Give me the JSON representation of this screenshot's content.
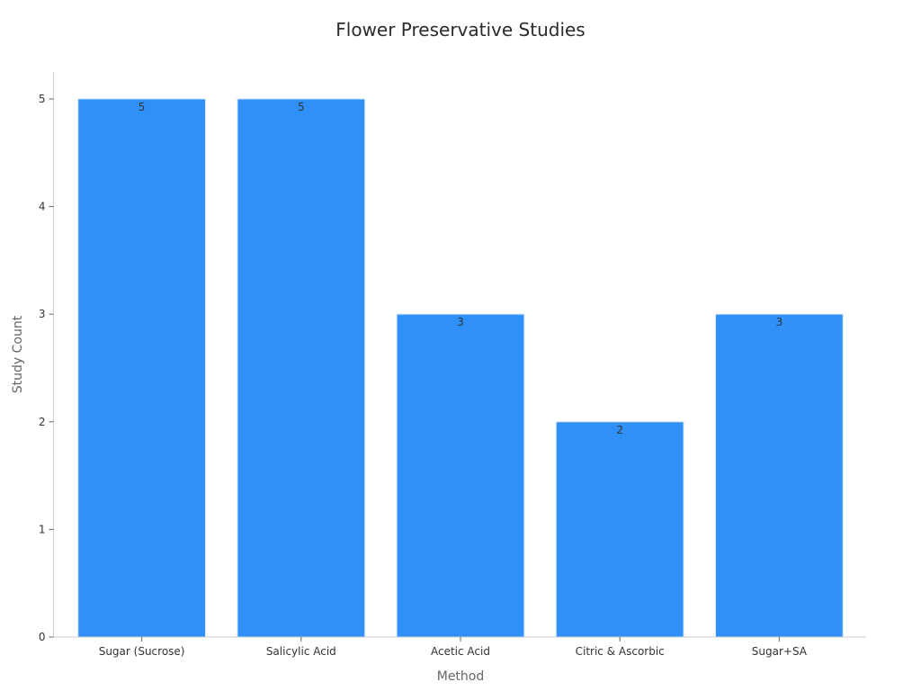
{
  "chart_data": {
    "type": "bar",
    "title": "Flower Preservative Studies",
    "xlabel": "Method",
    "ylabel": "Study Count",
    "categories": [
      "Sugar (Sucrose)",
      "Salicylic Acid",
      "Acetic Acid",
      "Citric & Ascorbic",
      "Sugar+SA"
    ],
    "values": [
      5,
      5,
      3,
      2,
      3
    ],
    "ylim": [
      0,
      5.25
    ],
    "yticks": [
      0,
      1,
      2,
      3,
      4,
      5
    ],
    "bar_color": "#2f91f7",
    "bar_edge_color": "#d9e8f7",
    "grid": false,
    "legend": "none"
  }
}
